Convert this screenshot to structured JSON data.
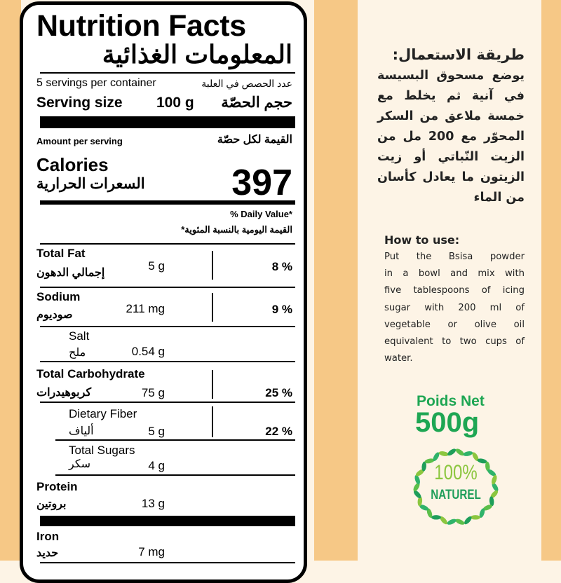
{
  "colors": {
    "accent_green": "#1ea653",
    "light_green": "#8cc63f",
    "orange_band": "#f6c886",
    "cream": "#fdf4e6"
  },
  "label": {
    "title": "Nutrition Facts",
    "title_ar": "المعلومات الغذائية",
    "servings_per_container": "5 servings per container",
    "servings_per_container_ar": "عدد الحصص في العلبة",
    "serving_size_label": "Serving size",
    "serving_size_value": "100 g",
    "serving_size_ar": "حجم الحصّة",
    "amount_per_serving": "Amount per serving",
    "amount_per_serving_ar": "القيمة لكل حصّة",
    "calories_label": "Calories",
    "calories_label_ar": "السعرات الحرارية",
    "calories_value": "397",
    "daily_value_header": "% Daily Value*",
    "daily_value_header_ar": "القيمة اليومية بالنسبة المئوية*",
    "nutrients": [
      {
        "name": "Total Fat",
        "name_ar": "إجمالي الدهون",
        "amount": "5 g",
        "dv": "8 %"
      },
      {
        "name": "Sodium",
        "name_ar": "صوديوم",
        "amount": "211 mg",
        "dv": "9 %"
      },
      {
        "name": "Salt",
        "name_ar": "ملح",
        "amount": "0.54 g",
        "dv": ""
      },
      {
        "name": "Total Carbohydrate",
        "name_ar": "كربوهيدرات",
        "amount": "75 g",
        "dv": "25 %"
      },
      {
        "name": "Dietary Fiber",
        "name_ar": "ألياف",
        "amount": "5 g",
        "dv": "22 %"
      },
      {
        "name": "Total Sugars",
        "name_ar": "سكر",
        "amount": "4 g",
        "dv": ""
      },
      {
        "name": "Protein",
        "name_ar": "بروتين",
        "amount": "13 g",
        "dv": ""
      },
      {
        "name": "Iron",
        "name_ar": "حديد",
        "amount": "7 mg",
        "dv": ""
      }
    ]
  },
  "instructions_ar": {
    "heading": "طريقة الاستعمال:",
    "lines": [
      "يوضع مسحوق البسيسة",
      "في آنية ثم يخلط مع",
      "خمسة ملاعق من السكر",
      "المحوّر مع 200 مل من",
      "الزيت النّباتي أو زيت",
      "الزيتون ما يعادل كأسان",
      "من الماء"
    ]
  },
  "instructions_en": {
    "heading": "How to use:",
    "lines": [
      "Put the Bsisa powder",
      "in a bowl and mix with",
      "five tablespoons of icing",
      "sugar with 200 ml of",
      "vegetable or olive oil",
      "equivalent to two cups of",
      "water."
    ]
  },
  "net_weight": {
    "label": "Poids Net",
    "value": "500g"
  },
  "badge": {
    "icon": "leaf-wreath-icon",
    "percent": "100%",
    "text": "NATUREL"
  }
}
